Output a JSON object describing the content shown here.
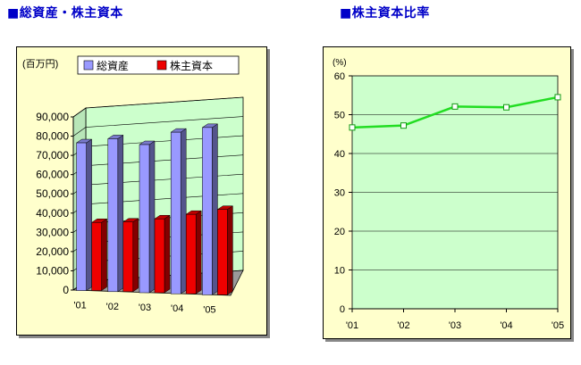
{
  "headings": {
    "left": "■総資産・株主資本",
    "right": "■株主資本比率"
  },
  "chart_data": [
    {
      "type": "bar",
      "unit_label": "(百万円)",
      "categories": [
        "'01",
        "'02",
        "'03",
        "'04",
        "'05"
      ],
      "series": [
        {
          "name": "総資産",
          "color": "#9999ff",
          "values": [
            76800,
            79500,
            77000,
            84000,
            87000
          ]
        },
        {
          "name": "株主資本",
          "color": "#ee0000",
          "values": [
            35400,
            36200,
            38400,
            41300,
            44400
          ]
        }
      ],
      "yticks": [
        0,
        10000,
        20000,
        30000,
        40000,
        50000,
        60000,
        70000,
        80000,
        90000
      ],
      "ytick_labels": [
        "0",
        "10,000",
        "20,000",
        "30,000",
        "40,000",
        "50,000",
        "60,000",
        "70,000",
        "80,000",
        "90,000"
      ],
      "ylim": [
        0,
        90000
      ],
      "grid": true,
      "legend": "top",
      "plot_background": "#ccffcc",
      "three_d": true
    },
    {
      "type": "line",
      "unit_label": "(%)",
      "categories": [
        "'01",
        "'02",
        "'03",
        "'04",
        "'05"
      ],
      "series": [
        {
          "color": "#22dd22",
          "values": [
            46.7,
            47.2,
            52.1,
            51.9,
            54.5
          ]
        }
      ],
      "yticks": [
        0,
        10,
        20,
        30,
        40,
        50,
        60
      ],
      "ylim": [
        0,
        60
      ],
      "grid": true,
      "plot_background": "#ccffcc"
    }
  ]
}
